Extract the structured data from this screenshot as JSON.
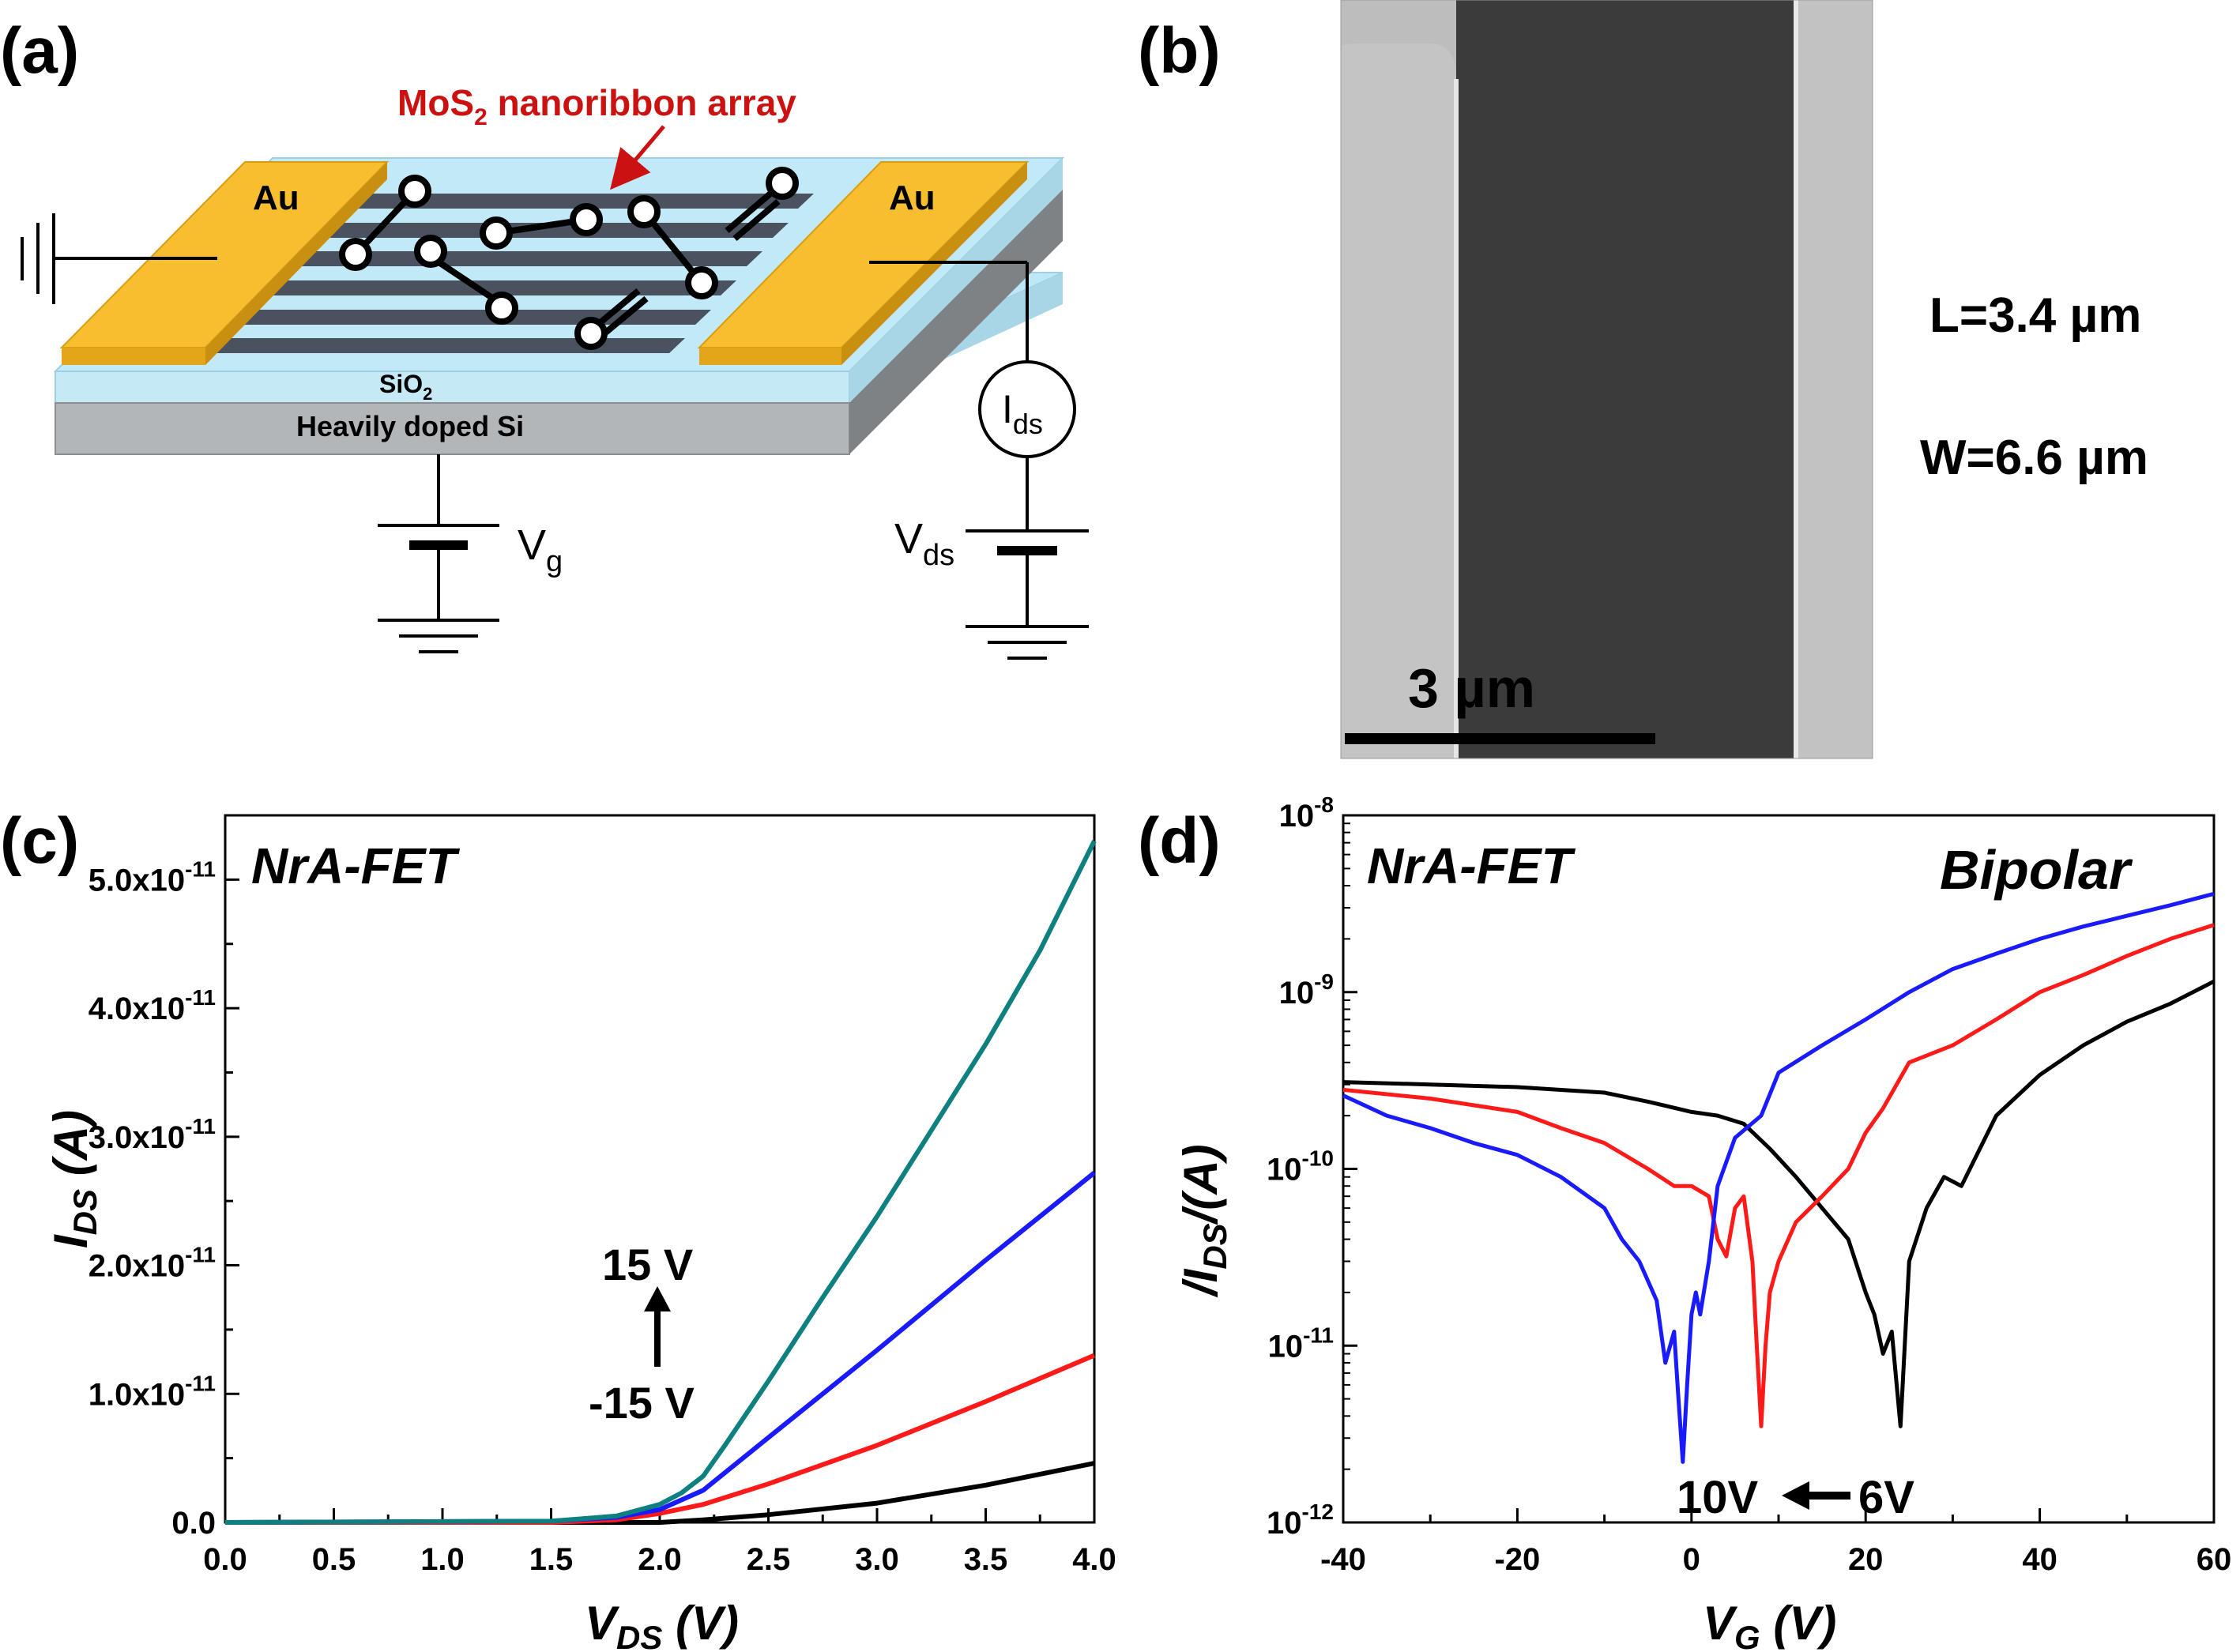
{
  "panel_a": {
    "label": "(a)",
    "array_label_main": "MoS",
    "array_label_sub": "2",
    "array_label_rest": " nanoribbon array",
    "electrode_left": "Au",
    "electrode_right": "Au",
    "oxide_main": "SiO",
    "oxide_sub": "2",
    "substrate": "Heavily doped Si",
    "meter_main": "I",
    "meter_sub": "ds",
    "gate_main": "V",
    "gate_sub": "g",
    "drain_main": "V",
    "drain_sub": "ds",
    "colors": {
      "electrode": "#f7be2f",
      "oxide": "#bfe8f7",
      "substrate": "#b3b6b9",
      "ribbon": "#4a5260",
      "arrow": "#cc1111"
    }
  },
  "panel_b": {
    "label": "(b)",
    "scale_bar": "3 µm",
    "length": "L=3.4 µm",
    "width": "W=6.6 µm"
  },
  "panel_c": {
    "label": "(c)",
    "device": "NrA-FET",
    "top_gate": "15 V",
    "bottom_gate": "-15 V",
    "xlabel_main": "V",
    "xlabel_sub": "DS",
    "xlabel_unit": " (V)",
    "ylabel_main": "I",
    "ylabel_sub": "DS",
    "ylabel_unit": " (A)",
    "xticks": [
      "0.0",
      "0.5",
      "1.0",
      "1.5",
      "2.0",
      "2.5",
      "3.0",
      "3.5",
      "4.0"
    ],
    "yticks": [
      {
        "mant": "0.0",
        "exp": ""
      },
      {
        "mant": "1.0x10",
        "exp": "-11"
      },
      {
        "mant": "2.0x10",
        "exp": "-11"
      },
      {
        "mant": "3.0x10",
        "exp": "-11"
      },
      {
        "mant": "4.0x10",
        "exp": "-11"
      },
      {
        "mant": "5.0x10",
        "exp": "-11"
      }
    ]
  },
  "panel_d": {
    "label": "(d)",
    "device": "NrA-FET",
    "mode": "Bipolar",
    "annot_left": "10V",
    "annot_right": "6V",
    "xlabel_main": "V",
    "xlabel_sub": "G",
    "xlabel_unit": " (V)",
    "ylabel_pre": "/I",
    "ylabel_sub": "DS",
    "ylabel_unit": "/(A)",
    "xticks": [
      "-40",
      "-20",
      "0",
      "20",
      "40",
      "60"
    ],
    "yticks": [
      {
        "mant": "10",
        "exp": "-12"
      },
      {
        "mant": "10",
        "exp": "-11"
      },
      {
        "mant": "10",
        "exp": "-10"
      },
      {
        "mant": "10",
        "exp": "-9"
      },
      {
        "mant": "10",
        "exp": "-8"
      }
    ]
  },
  "chart_data": [
    {
      "type": "line",
      "xlabel": "VDS (V)",
      "ylabel": "IDS (A)",
      "xlim": [
        0,
        4.0
      ],
      "ylim": [
        0,
        5.5e-11
      ],
      "series": [
        {
          "color": "#000000",
          "x": [
            0,
            1.5,
            2.0,
            2.2,
            2.5,
            3.0,
            3.5,
            4.0
          ],
          "y": [
            0,
            0,
            0,
            2e-13,
            6e-13,
            1.5e-12,
            2.9e-12,
            4.6e-12
          ]
        },
        {
          "color": "#ff1a1a",
          "x": [
            0,
            1.5,
            1.8,
            2.0,
            2.2,
            2.5,
            3.0,
            3.5,
            4.0
          ],
          "y": [
            0,
            0,
            2e-13,
            7e-13,
            1.4e-12,
            3e-12,
            6e-12,
            9.4e-12,
            1.3e-11
          ]
        },
        {
          "color": "#1a1aff",
          "x": [
            0,
            1.5,
            1.8,
            2.0,
            2.2,
            2.5,
            3.0,
            3.5,
            4.0
          ],
          "y": [
            0,
            1e-13,
            4e-13,
            1e-12,
            2.5e-12,
            6.6e-12,
            1.34e-11,
            2.04e-11,
            2.72e-11
          ]
        },
        {
          "color": "#0f8080",
          "x": [
            0,
            1.5,
            1.8,
            2.0,
            2.1,
            2.2,
            2.3,
            2.4,
            2.5,
            2.75,
            3.0,
            3.25,
            3.5,
            3.75,
            4.0
          ],
          "y": [
            0,
            1e-13,
            5e-13,
            1.4e-12,
            2.3e-12,
            3.6e-12,
            6e-12,
            8.5e-12,
            1.1e-11,
            1.75e-11,
            2.38e-11,
            3.05e-11,
            3.72e-11,
            4.45e-11,
            5.3e-11
          ]
        }
      ]
    },
    {
      "type": "line",
      "xlabel": "VG (V)",
      "ylabel": "/IDS/(A)",
      "xlim": [
        -40,
        60
      ],
      "ylim": [
        1e-12,
        1e-08
      ],
      "log_y": true,
      "series": [
        {
          "color": "#000000",
          "x": [
            -40,
            -30,
            -20,
            -10,
            -5,
            0,
            3,
            6,
            9,
            12,
            15,
            18,
            20,
            21,
            22,
            23,
            24,
            25,
            27,
            29,
            31,
            35,
            40,
            45,
            50,
            55,
            60
          ],
          "y": [
            3.1e-10,
            3e-10,
            2.9e-10,
            2.7e-10,
            2.4e-10,
            2.1e-10,
            2e-10,
            1.8e-10,
            1.3e-10,
            9e-11,
            6e-11,
            4e-11,
            2e-11,
            1.5e-11,
            9e-12,
            1.2e-11,
            3.5e-12,
            3e-11,
            6e-11,
            9e-11,
            8e-11,
            2e-10,
            3.4e-10,
            5e-10,
            6.8e-10,
            8.6e-10,
            1.15e-09
          ]
        },
        {
          "color": "#ff1a1a",
          "x": [
            -40,
            -30,
            -20,
            -15,
            -10,
            -5,
            -2,
            0,
            2,
            3,
            4,
            5,
            6,
            7,
            7.5,
            8,
            8.5,
            9,
            10,
            12,
            15,
            18,
            20,
            22,
            25,
            30,
            35,
            40,
            45,
            50,
            55,
            60
          ],
          "y": [
            2.8e-10,
            2.5e-10,
            2.1e-10,
            1.7e-10,
            1.4e-10,
            1e-10,
            8e-11,
            8e-11,
            7e-11,
            4e-11,
            3.2e-11,
            6e-11,
            7e-11,
            3e-11,
            1e-11,
            3.5e-12,
            1e-11,
            2e-11,
            3e-11,
            5e-11,
            7e-11,
            1e-10,
            1.6e-10,
            2.2e-10,
            4e-10,
            5e-10,
            7e-10,
            1e-09,
            1.25e-09,
            1.6e-09,
            2e-09,
            2.4e-09
          ]
        },
        {
          "color": "#1a1aff",
          "x": [
            -40,
            -35,
            -30,
            -25,
            -20,
            -15,
            -10,
            -8,
            -6,
            -4,
            -3,
            -2,
            -1.5,
            -1,
            -0.5,
            0,
            0.5,
            1,
            2,
            3,
            5,
            8,
            10,
            15,
            20,
            25,
            30,
            35,
            40,
            45,
            50,
            55,
            60
          ],
          "y": [
            2.6e-10,
            2e-10,
            1.7e-10,
            1.4e-10,
            1.2e-10,
            9e-11,
            6e-11,
            4e-11,
            3e-11,
            1.8e-11,
            8e-12,
            1.2e-11,
            5e-12,
            2.2e-12,
            6e-12,
            1.5e-11,
            2e-11,
            1.5e-11,
            3e-11,
            8e-11,
            1.5e-10,
            2e-10,
            3.5e-10,
            5e-10,
            7e-10,
            1e-09,
            1.35e-09,
            1.65e-09,
            2e-09,
            2.35e-09,
            2.7e-09,
            3.1e-09,
            3.6e-09
          ]
        }
      ]
    }
  ]
}
